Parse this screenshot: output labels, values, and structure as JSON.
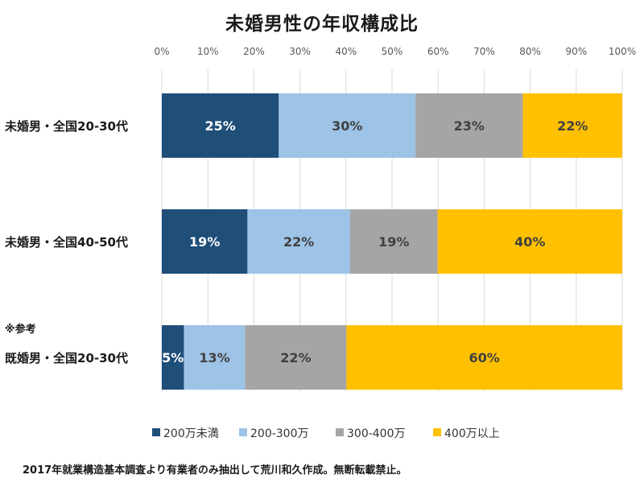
{
  "chart_data": {
    "type": "bar",
    "orientation": "horizontal",
    "stacked": true,
    "percent_scale": true,
    "title": "未婚男性の年収構成比",
    "xlim": [
      0,
      100
    ],
    "x_ticks": [
      "0%",
      "10%",
      "20%",
      "30%",
      "40%",
      "50%",
      "60%",
      "70%",
      "80%",
      "90%",
      "100%"
    ],
    "x_axis_position": "top",
    "grid": true,
    "legend_position": "bottom",
    "categories": [
      "未婚男・全国20-30代",
      "未婚男・全国40-50代",
      "既婚男・全国20-30代"
    ],
    "category_note": "※参考",
    "series": [
      {
        "name": "200万未満",
        "color": "#1f4e79",
        "label_color": "#ffffff",
        "values": [
          25.4,
          18.6,
          4.8
        ],
        "labels": [
          "25%",
          "19%",
          "5%"
        ]
      },
      {
        "name": "200-300万",
        "color": "#9dc3e6",
        "label_color": "#404040",
        "values": [
          29.7,
          22.3,
          13.3
        ],
        "labels": [
          "30%",
          "22%",
          "13%"
        ]
      },
      {
        "name": "300-400万",
        "color": "#a5a5a5",
        "label_color": "#404040",
        "values": [
          23.3,
          19.0,
          22.0
        ],
        "labels": [
          "23%",
          "19%",
          "22%"
        ]
      },
      {
        "name": "400万以上",
        "color": "#ffc000",
        "label_color": "#404040",
        "values": [
          21.6,
          40.1,
          59.9
        ],
        "labels": [
          "22%",
          "40%",
          "60%"
        ]
      }
    ],
    "footnote": "2017年就業構造基本調査より有業者のみ抽出して荒川和久作成。無断転載禁止。"
  }
}
